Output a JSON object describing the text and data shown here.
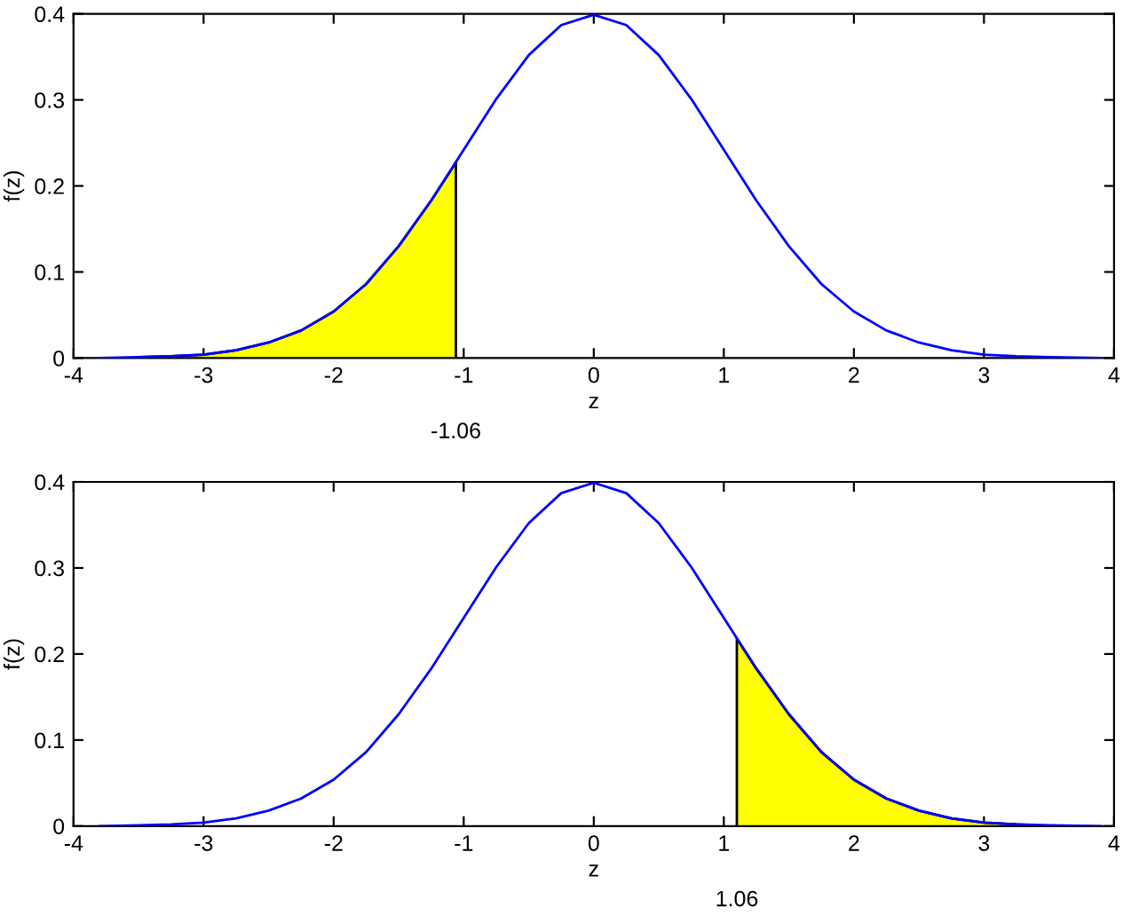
{
  "chart_data": [
    {
      "type": "line",
      "xlabel": "z",
      "ylabel": "f(z)",
      "xlim": [
        -4,
        4
      ],
      "ylim": [
        0,
        0.4
      ],
      "xticks": [
        -4,
        -3,
        -2,
        -1,
        0,
        1,
        2,
        3,
        4
      ],
      "yticks": [
        0,
        0.1,
        0.2,
        0.3,
        0.4
      ],
      "grid": false,
      "legend": false,
      "series": [
        {
          "type": "area",
          "color": "#ffff00",
          "x": [
            -3.5,
            -3.25,
            -3,
            -2.75,
            -2.5,
            -2.25,
            -2,
            -1.75,
            -1.5,
            -1.25,
            -1.06
          ],
          "values": [
            0.001,
            0.002,
            0.004,
            0.009,
            0.018,
            0.032,
            0.054,
            0.086,
            0.13,
            0.183,
            0.227
          ]
        },
        {
          "color": "#0000ff",
          "x": [
            -3.8,
            -3.5,
            -3.25,
            -3,
            -2.75,
            -2.5,
            -2.25,
            -2,
            -1.75,
            -1.5,
            -1.25,
            -1,
            -0.75,
            -0.5,
            -0.25,
            0,
            0.25,
            0.5,
            0.75,
            1,
            1.25,
            1.5,
            1.75,
            2,
            2.25,
            2.5,
            2.75,
            3,
            3.25,
            3.5,
            3.9
          ],
          "values": [
            0.0,
            0.001,
            0.002,
            0.004,
            0.009,
            0.018,
            0.032,
            0.054,
            0.086,
            0.13,
            0.183,
            0.242,
            0.301,
            0.352,
            0.387,
            0.399,
            0.387,
            0.352,
            0.301,
            0.242,
            0.183,
            0.13,
            0.086,
            0.054,
            0.032,
            0.018,
            0.009,
            0.004,
            0.002,
            0.001,
            0.0
          ]
        }
      ],
      "annotations": [
        "-1.06"
      ]
    },
    {
      "type": "line",
      "xlabel": "z",
      "ylabel": "f(z)",
      "xlim": [
        -4,
        4
      ],
      "ylim": [
        0,
        0.4
      ],
      "xticks": [
        -4,
        -3,
        -2,
        -1,
        0,
        1,
        2,
        3,
        4
      ],
      "yticks": [
        0,
        0.1,
        0.2,
        0.3,
        0.4
      ],
      "grid": false,
      "legend": false,
      "series": [
        {
          "type": "area",
          "color": "#ffff00",
          "x": [
            1.1,
            1.25,
            1.5,
            1.75,
            2,
            2.25,
            2.5,
            2.75,
            3,
            3.25,
            3.4
          ],
          "values": [
            0.218,
            0.183,
            0.13,
            0.086,
            0.054,
            0.032,
            0.018,
            0.009,
            0.004,
            0.002,
            0.001
          ]
        },
        {
          "color": "#0000ff",
          "x": [
            -3.8,
            -3.5,
            -3.25,
            -3,
            -2.75,
            -2.5,
            -2.25,
            -2,
            -1.75,
            -1.5,
            -1.25,
            -1,
            -0.75,
            -0.5,
            -0.25,
            0,
            0.25,
            0.5,
            0.75,
            1,
            1.25,
            1.5,
            1.75,
            2,
            2.25,
            2.5,
            2.75,
            3,
            3.25,
            3.5,
            3.9
          ],
          "values": [
            0.0,
            0.001,
            0.002,
            0.004,
            0.009,
            0.018,
            0.032,
            0.054,
            0.086,
            0.13,
            0.183,
            0.242,
            0.301,
            0.352,
            0.387,
            0.399,
            0.387,
            0.352,
            0.301,
            0.242,
            0.183,
            0.13,
            0.086,
            0.054,
            0.032,
            0.018,
            0.009,
            0.004,
            0.002,
            0.001,
            0.0
          ]
        }
      ],
      "annotations": [
        "1.06"
      ]
    }
  ]
}
